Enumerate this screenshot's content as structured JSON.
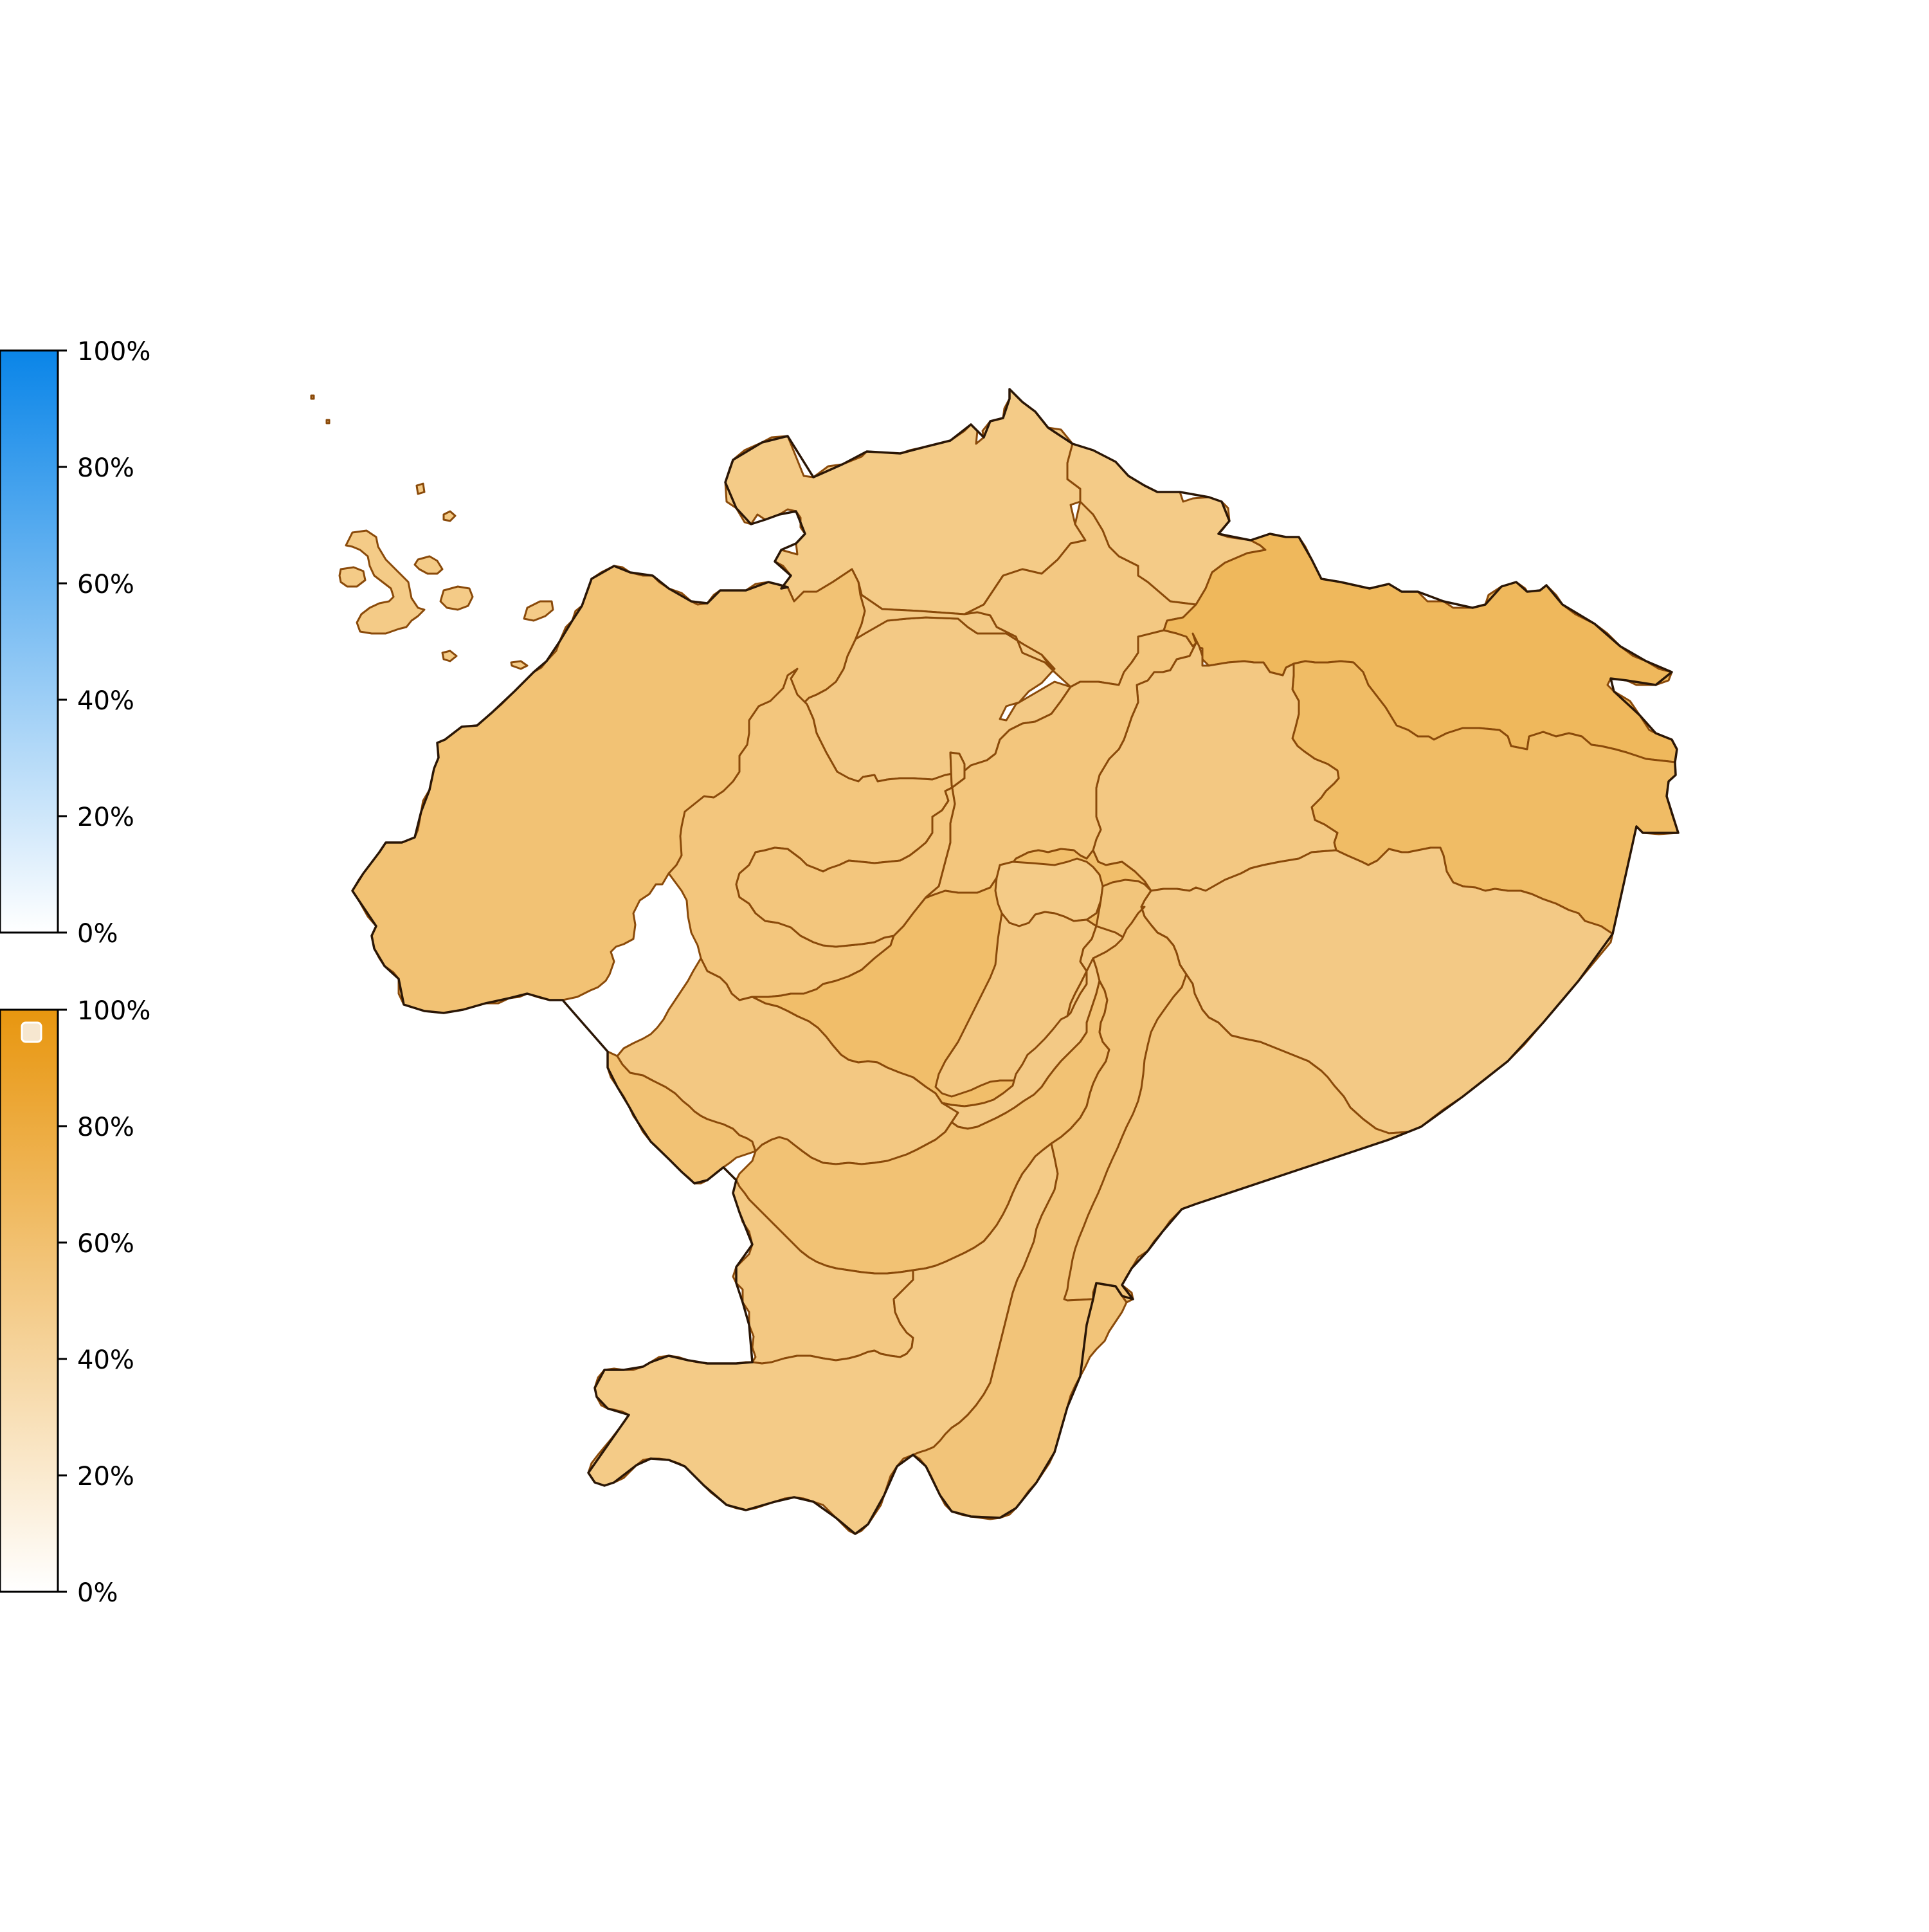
{
  "colors": {
    "blue_top": "#0a85e8",
    "blue_bottom": "#ffffff",
    "orange_top": "#e8960f",
    "orange_bottom": "#ffffff",
    "region_border": "#8a4a0a",
    "outline": "#2a1606",
    "frame": "#000000"
  },
  "legend_blue": {
    "ticks": [
      "100%",
      "80%",
      "60%",
      "40%",
      "20%",
      "0%"
    ]
  },
  "legend_orange": {
    "ticks": [
      "100%",
      "80%",
      "60%",
      "40%",
      "20%",
      "0%"
    ]
  },
  "chart_data": {
    "type": "choropleth",
    "color_scales": [
      {
        "name": "",
        "color": "blue",
        "range": [
          0,
          100
        ],
        "unit": "%"
      },
      {
        "name": "",
        "color": "orange",
        "range": [
          0,
          100
        ],
        "unit": "%"
      }
    ],
    "regions": [
      {
        "id": "north-coast",
        "scale": "orange",
        "value": 50
      },
      {
        "id": "north-highland-1",
        "scale": "orange",
        "value": 50
      },
      {
        "id": "north-highland-2",
        "scale": "orange",
        "value": 52
      },
      {
        "id": "northeast-amazon",
        "scale": "orange",
        "value": 68
      },
      {
        "id": "central-highland-1",
        "scale": "orange",
        "value": 51
      },
      {
        "id": "central-highland-2",
        "scale": "orange",
        "value": 51
      },
      {
        "id": "east-amazon-north",
        "scale": "orange",
        "value": 64
      },
      {
        "id": "central-amazon-west",
        "scale": "orange",
        "value": 52
      },
      {
        "id": "coast-manabi",
        "scale": "orange",
        "value": 58
      },
      {
        "id": "coast-santo-domingo",
        "scale": "orange",
        "value": 54
      },
      {
        "id": "highland-cotopaxi",
        "scale": "orange",
        "value": 62
      },
      {
        "id": "highland-tungurahua",
        "scale": "orange",
        "value": 50
      },
      {
        "id": "coast-los-rios",
        "scale": "orange",
        "value": 54
      },
      {
        "id": "highland-bolivar",
        "scale": "orange",
        "value": 52
      },
      {
        "id": "highland-chimborazo",
        "scale": "orange",
        "value": 52
      },
      {
        "id": "amazon-pastaza",
        "scale": "orange",
        "value": 51
      },
      {
        "id": "amazon-morona",
        "scale": "orange",
        "value": 55
      },
      {
        "id": "coast-santa-elena",
        "scale": "orange",
        "value": 58
      },
      {
        "id": "coast-guayas",
        "scale": "orange",
        "value": 52
      },
      {
        "id": "highland-canar",
        "scale": "orange",
        "value": 51
      },
      {
        "id": "highland-azuay",
        "scale": "orange",
        "value": 58
      },
      {
        "id": "coast-el-oro",
        "scale": "orange",
        "value": 52
      },
      {
        "id": "south-loja",
        "scale": "orange",
        "value": 50
      },
      {
        "id": "south-zamora",
        "scale": "orange",
        "value": 56
      },
      {
        "id": "galapagos",
        "scale": "orange",
        "value": 50
      }
    ]
  }
}
